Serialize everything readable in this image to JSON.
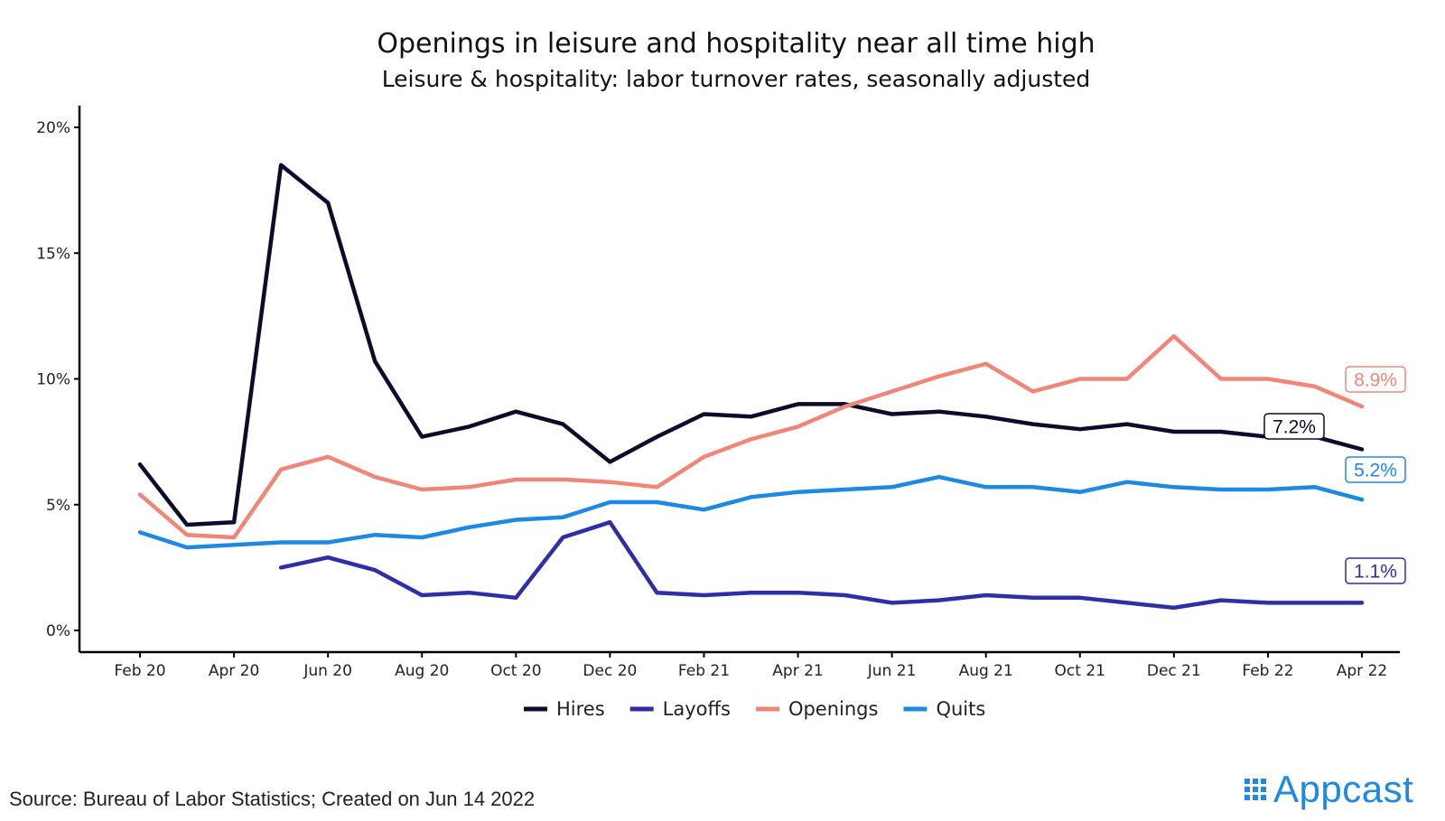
{
  "chart_data": {
    "type": "line",
    "title": "Openings in leisure and hospitality near all time high",
    "subtitle": "Leisure & hospitality: labor turnover rates, seasonally adjusted",
    "xlabel": "",
    "ylabel": "",
    "ylim": [
      0,
      20
    ],
    "yticks": [
      0,
      5,
      10,
      15,
      20
    ],
    "ytick_labels": [
      "0%",
      "5%",
      "10%",
      "15%",
      "20%"
    ],
    "categories": [
      "Feb 20",
      "Mar 20",
      "Apr 20",
      "May 20",
      "Jun 20",
      "Jul 20",
      "Aug 20",
      "Sep 20",
      "Oct 20",
      "Nov 20",
      "Dec 20",
      "Jan 21",
      "Feb 21",
      "Mar 21",
      "Apr 21",
      "May 21",
      "Jun 21",
      "Jul 21",
      "Aug 21",
      "Sep 21",
      "Oct 21",
      "Nov 21",
      "Dec 21",
      "Jan 22",
      "Feb 22",
      "Mar 22",
      "Apr 22"
    ],
    "xtick_labels": [
      "Feb 20",
      "Apr 20",
      "Jun 20",
      "Aug 20",
      "Oct 20",
      "Dec 20",
      "Feb 21",
      "Apr 21",
      "Jun 21",
      "Aug 21",
      "Oct 21",
      "Dec 21",
      "Feb 22",
      "Apr 22"
    ],
    "series": [
      {
        "name": "Hires",
        "color": "#0d0b2b",
        "values": [
          6.6,
          4.2,
          4.3,
          18.5,
          17.0,
          10.7,
          7.7,
          8.1,
          8.7,
          8.2,
          6.7,
          7.7,
          8.6,
          8.5,
          9.0,
          9.0,
          8.6,
          8.7,
          8.5,
          8.2,
          8.0,
          8.2,
          7.9,
          7.9,
          7.7,
          7.7,
          7.2
        ],
        "end_label": "7.2%"
      },
      {
        "name": "Layoffs",
        "color": "#2e2fa6",
        "values": [
          null,
          null,
          null,
          2.5,
          2.9,
          2.4,
          1.4,
          1.5,
          1.3,
          3.7,
          4.3,
          1.5,
          1.4,
          1.5,
          1.5,
          1.4,
          1.1,
          1.2,
          1.4,
          1.3,
          1.3,
          1.1,
          0.9,
          1.2,
          1.1,
          1.1,
          1.1
        ],
        "end_label": "1.1%"
      },
      {
        "name": "Openings",
        "color": "#f08678",
        "values": [
          5.4,
          3.8,
          3.7,
          6.4,
          6.9,
          6.1,
          5.6,
          5.7,
          6.0,
          6.0,
          5.9,
          5.7,
          6.9,
          7.6,
          8.1,
          8.9,
          9.5,
          10.1,
          10.6,
          9.5,
          10.0,
          10.0,
          11.7,
          10.0,
          10.0,
          9.7,
          8.9
        ],
        "end_label": "8.9%"
      },
      {
        "name": "Quits",
        "color": "#1e88e5",
        "values": [
          3.9,
          3.3,
          3.4,
          3.5,
          3.5,
          3.8,
          3.7,
          4.1,
          4.4,
          4.5,
          5.1,
          5.1,
          4.8,
          5.3,
          5.5,
          5.6,
          5.7,
          6.1,
          5.7,
          5.7,
          5.5,
          5.9,
          5.7,
          5.6,
          5.6,
          5.7,
          5.2
        ],
        "end_label": "5.2%"
      }
    ],
    "legend": {
      "position": "bottom",
      "labels": [
        "Hires",
        "Layoffs",
        "Openings",
        "Quits"
      ]
    }
  },
  "footer": {
    "source": "Source: Bureau of Labor Statistics; Created on Jun 14 2022",
    "brand": "Appcast"
  }
}
